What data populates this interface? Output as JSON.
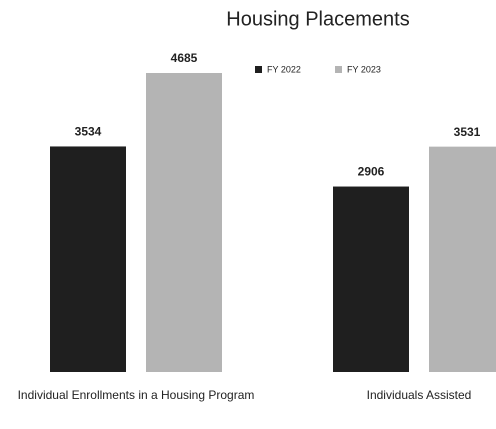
{
  "chart_data": {
    "type": "bar",
    "title": "Housing Placements",
    "categories": [
      "Individual Enrollments in a Housing Program",
      "Individuals Assisted"
    ],
    "series": [
      {
        "name": "FY 2022",
        "color": "#1f1f1f",
        "values": [
          3534,
          2906
        ]
      },
      {
        "name": "FY 2023",
        "color": "#b4b4b4",
        "values": [
          4685,
          3531
        ]
      }
    ]
  }
}
